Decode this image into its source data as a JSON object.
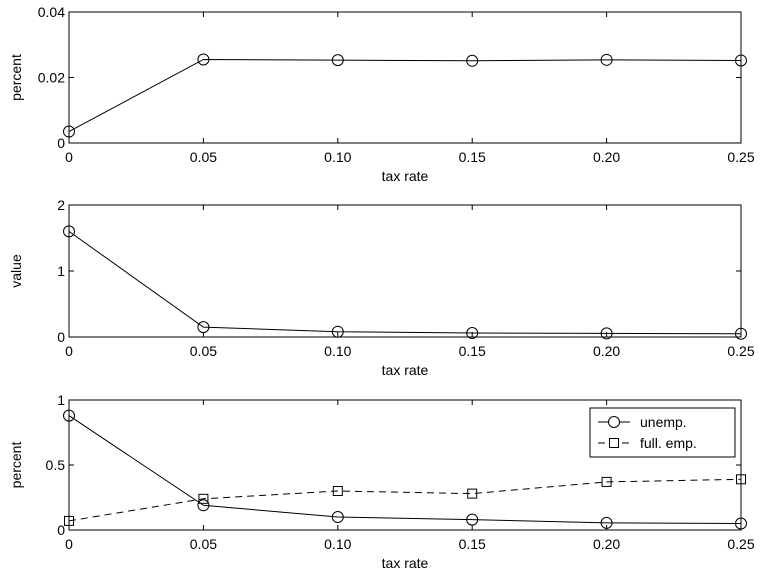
{
  "chart_data": [
    {
      "type": "line",
      "x": [
        0,
        0.05,
        0.1,
        0.15,
        0.2,
        0.25
      ],
      "x_tick_labels": [
        "0",
        "0.05",
        "0.10",
        "0.15",
        "0.20",
        "0.25"
      ],
      "xlim": [
        0,
        0.25
      ],
      "ylim": [
        0,
        0.04
      ],
      "y_ticks": [
        0,
        0.02,
        0.04
      ],
      "y_tick_labels": [
        "0",
        "0.02",
        "0.04"
      ],
      "xlabel": "tax rate",
      "ylabel": "percent",
      "grid": false,
      "series": [
        {
          "values": [
            0.0035,
            0.0255,
            0.0253,
            0.0251,
            0.0254,
            0.0252
          ],
          "line": "solid",
          "marker": "circle"
        }
      ]
    },
    {
      "type": "line",
      "x": [
        0,
        0.05,
        0.1,
        0.15,
        0.2,
        0.25
      ],
      "x_tick_labels": [
        "0",
        "0.05",
        "0.10",
        "0.15",
        "0.20",
        "0.25"
      ],
      "xlim": [
        0,
        0.25
      ],
      "ylim": [
        0,
        2
      ],
      "y_ticks": [
        0,
        1,
        2
      ],
      "y_tick_labels": [
        "0",
        "1",
        "2"
      ],
      "xlabel": "tax rate",
      "ylabel": "value",
      "grid": false,
      "series": [
        {
          "values": [
            1.6,
            0.15,
            0.08,
            0.06,
            0.055,
            0.05
          ],
          "line": "solid",
          "marker": "circle"
        }
      ]
    },
    {
      "type": "line",
      "x": [
        0,
        0.05,
        0.1,
        0.15,
        0.2,
        0.25
      ],
      "x_tick_labels": [
        "0",
        "0.05",
        "0.10",
        "0.15",
        "0.20",
        "0.25"
      ],
      "xlim": [
        0,
        0.25
      ],
      "ylim": [
        0,
        1
      ],
      "y_ticks": [
        0,
        0.5,
        1
      ],
      "y_tick_labels": [
        "0",
        "0.5",
        "1"
      ],
      "xlabel": "tax rate",
      "ylabel": "percent",
      "grid": false,
      "legend": "top-right",
      "series": [
        {
          "name": "unemp.",
          "values": [
            0.88,
            0.19,
            0.1,
            0.08,
            0.055,
            0.05
          ],
          "line": "solid",
          "marker": "circle"
        },
        {
          "name": "full. emp.",
          "values": [
            0.07,
            0.24,
            0.3,
            0.28,
            0.37,
            0.39
          ],
          "line": "dashed",
          "marker": "square"
        }
      ]
    }
  ]
}
